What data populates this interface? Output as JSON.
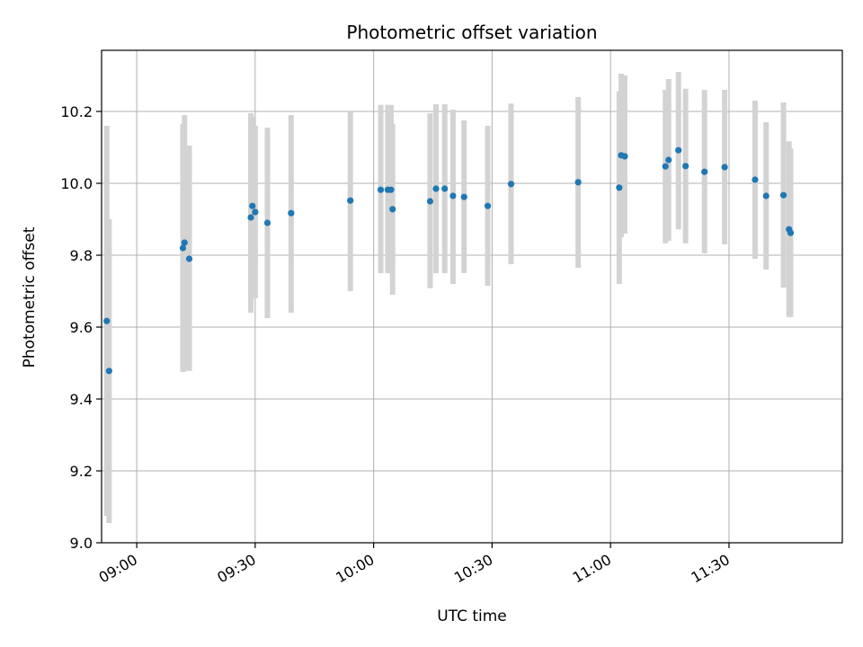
{
  "chart_data": {
    "type": "scatter",
    "title": "Photometric offset variation",
    "xlabel": "UTC time",
    "ylabel": "Photometric offset",
    "x_axis_kind": "time",
    "xlim": [
      "08:51:06",
      "11:58:42"
    ],
    "ylim": [
      9.0,
      10.37
    ],
    "xticks": [
      "09:00",
      "09:30",
      "10:00",
      "10:30",
      "11:00",
      "11:30"
    ],
    "yticks": [
      9.0,
      9.2,
      9.4,
      9.6,
      9.8,
      10.0,
      10.2
    ],
    "ytick_labels": [
      "9.0",
      "9.2",
      "9.4",
      "9.6",
      "9.8",
      "10.0",
      "10.2"
    ],
    "grid": true,
    "series_color": "#1f77b4",
    "errorbar_color": "#d3d3d3",
    "points": [
      {
        "t": "08:52:24",
        "y": 9.617,
        "lo": 9.075,
        "hi": 10.16
      },
      {
        "t": "08:53:00",
        "y": 9.478,
        "lo": 9.055,
        "hi": 9.9
      },
      {
        "t": "09:11:42",
        "y": 9.82,
        "lo": 9.475,
        "hi": 10.165
      },
      {
        "t": "09:12:06",
        "y": 9.835,
        "lo": 9.478,
        "hi": 10.19
      },
      {
        "t": "09:13:18",
        "y": 9.79,
        "lo": 9.478,
        "hi": 10.105
      },
      {
        "t": "09:28:54",
        "y": 9.905,
        "lo": 9.64,
        "hi": 10.195
      },
      {
        "t": "09:29:18",
        "y": 9.937,
        "lo": 9.68,
        "hi": 10.185
      },
      {
        "t": "09:30:00",
        "y": 9.92,
        "lo": 9.68,
        "hi": 10.16
      },
      {
        "t": "09:33:06",
        "y": 9.89,
        "lo": 9.625,
        "hi": 10.155
      },
      {
        "t": "09:39:06",
        "y": 9.917,
        "lo": 9.64,
        "hi": 10.19
      },
      {
        "t": "09:54:06",
        "y": 9.952,
        "lo": 9.7,
        "hi": 10.2
      },
      {
        "t": "10:01:48",
        "y": 9.982,
        "lo": 9.75,
        "hi": 10.218
      },
      {
        "t": "10:03:36",
        "y": 9.982,
        "lo": 9.75,
        "hi": 10.218
      },
      {
        "t": "10:04:24",
        "y": 9.982,
        "lo": 9.75,
        "hi": 10.218
      },
      {
        "t": "10:04:48",
        "y": 9.928,
        "lo": 9.69,
        "hi": 10.165
      },
      {
        "t": "10:14:18",
        "y": 9.95,
        "lo": 9.708,
        "hi": 10.195
      },
      {
        "t": "10:15:48",
        "y": 9.985,
        "lo": 9.75,
        "hi": 10.22
      },
      {
        "t": "10:18:00",
        "y": 9.985,
        "lo": 9.75,
        "hi": 10.22
      },
      {
        "t": "10:20:06",
        "y": 9.965,
        "lo": 9.72,
        "hi": 10.205
      },
      {
        "t": "10:22:54",
        "y": 9.962,
        "lo": 9.75,
        "hi": 10.175
      },
      {
        "t": "10:28:54",
        "y": 9.937,
        "lo": 9.715,
        "hi": 10.16
      },
      {
        "t": "10:34:48",
        "y": 9.998,
        "lo": 9.775,
        "hi": 10.222
      },
      {
        "t": "10:51:48",
        "y": 10.003,
        "lo": 9.765,
        "hi": 10.24
      },
      {
        "t": "11:02:12",
        "y": 9.988,
        "lo": 9.72,
        "hi": 10.256
      },
      {
        "t": "11:02:42",
        "y": 10.078,
        "lo": 9.85,
        "hi": 10.305
      },
      {
        "t": "11:03:36",
        "y": 10.075,
        "lo": 9.86,
        "hi": 10.3
      },
      {
        "t": "11:13:54",
        "y": 10.047,
        "lo": 9.833,
        "hi": 10.26
      },
      {
        "t": "11:14:42",
        "y": 10.065,
        "lo": 9.84,
        "hi": 10.29
      },
      {
        "t": "11:17:12",
        "y": 10.092,
        "lo": 9.872,
        "hi": 10.31
      },
      {
        "t": "11:19:00",
        "y": 10.048,
        "lo": 9.833,
        "hi": 10.263
      },
      {
        "t": "11:23:48",
        "y": 10.032,
        "lo": 9.805,
        "hi": 10.26
      },
      {
        "t": "11:28:54",
        "y": 10.045,
        "lo": 9.83,
        "hi": 10.26
      },
      {
        "t": "11:36:36",
        "y": 10.01,
        "lo": 9.79,
        "hi": 10.23
      },
      {
        "t": "11:39:24",
        "y": 9.965,
        "lo": 9.76,
        "hi": 10.17
      },
      {
        "t": "11:43:48",
        "y": 9.967,
        "lo": 9.71,
        "hi": 10.225
      },
      {
        "t": "11:45:12",
        "y": 9.872,
        "lo": 9.628,
        "hi": 10.117
      },
      {
        "t": "11:45:36",
        "y": 9.862,
        "lo": 9.628,
        "hi": 10.097
      }
    ]
  }
}
